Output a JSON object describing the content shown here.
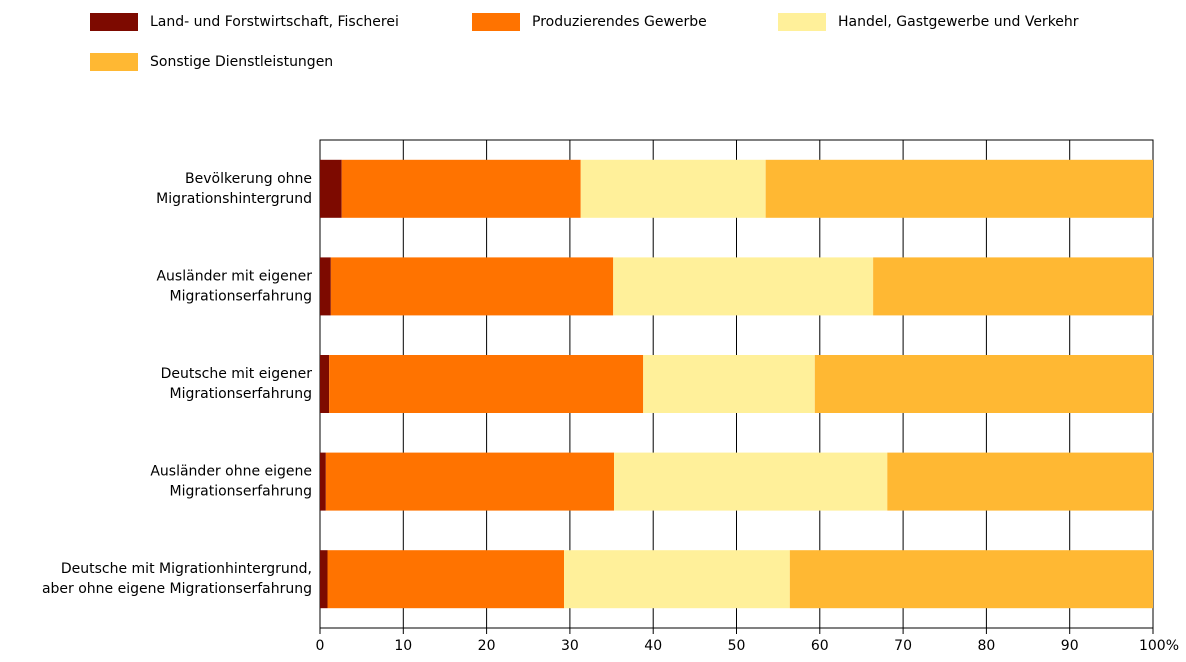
{
  "chart_data": {
    "type": "stacked-barh",
    "categories": [
      [
        "Bevölkerung ohne",
        "Migrationshintergrund"
      ],
      [
        "Ausländer mit eigener",
        "Migrationserfahrung"
      ],
      [
        "Deutsche mit eigener",
        "Migrationserfahrung"
      ],
      [
        "Ausländer ohne eigene",
        "Migrationserfahrung"
      ],
      [
        "Deutsche mit Migrationhintergrund,",
        "aber ohne eigene Migrationserfahrung"
      ]
    ],
    "series": [
      {
        "name": "Land- und Forstwirtschaft, Fischerei",
        "color": "#7d0a00",
        "values": [
          2.6,
          1.3,
          1.1,
          0.7,
          0.9
        ]
      },
      {
        "name": "Produzierendes Gewerbe",
        "color": "#ff7300",
        "values": [
          28.7,
          33.9,
          37.7,
          34.6,
          28.4
        ]
      },
      {
        "name": "Handel, Gastgewerbe und Verkehr",
        "color": "#fff09a",
        "values": [
          22.2,
          31.2,
          20.6,
          32.8,
          27.1
        ]
      },
      {
        "name": "Sonstige Dienstleistungen",
        "color": "#ffb833",
        "values": [
          46.5,
          33.6,
          40.6,
          31.9,
          43.6
        ]
      }
    ],
    "xlim": [
      0,
      100
    ],
    "xticks": [
      0,
      10,
      20,
      30,
      40,
      50,
      60,
      70,
      80,
      90,
      {
        "value": 100,
        "label": "100%"
      }
    ],
    "grid": true
  }
}
